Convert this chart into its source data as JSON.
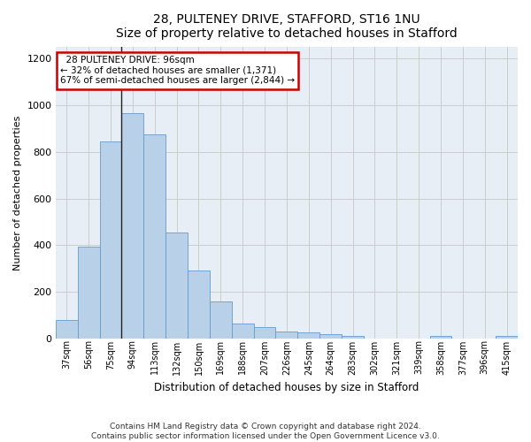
{
  "title1": "28, PULTENEY DRIVE, STAFFORD, ST16 1NU",
  "title2": "Size of property relative to detached houses in Stafford",
  "xlabel": "Distribution of detached houses by size in Stafford",
  "ylabel": "Number of detached properties",
  "footnote1": "Contains HM Land Registry data © Crown copyright and database right 2024.",
  "footnote2": "Contains public sector information licensed under the Open Government Licence v3.0.",
  "annotation_line1": "28 PULTENEY DRIVE: 96sqm",
  "annotation_line2": "← 32% of detached houses are smaller (1,371)",
  "annotation_line3": "67% of semi-detached houses are larger (2,844) →",
  "bar_color": "#b8d0e8",
  "bar_edge_color": "#6699cc",
  "grid_color": "#cccccc",
  "bg_color": "#e8eef5",
  "vline_color": "#222222",
  "annotation_box_edge": "#cc0000",
  "categories": [
    "37sqm",
    "56sqm",
    "75sqm",
    "94sqm",
    "113sqm",
    "132sqm",
    "150sqm",
    "169sqm",
    "188sqm",
    "207sqm",
    "226sqm",
    "245sqm",
    "264sqm",
    "283sqm",
    "302sqm",
    "321sqm",
    "339sqm",
    "358sqm",
    "377sqm",
    "396sqm",
    "415sqm"
  ],
  "values": [
    80,
    395,
    845,
    965,
    875,
    455,
    290,
    160,
    65,
    50,
    30,
    25,
    18,
    10,
    0,
    0,
    0,
    10,
    0,
    0,
    10
  ],
  "ylim": [
    0,
    1250
  ],
  "yticks": [
    0,
    200,
    400,
    600,
    800,
    1000,
    1200
  ],
  "vline_bar_index": 3,
  "figsize": [
    6.0,
    5.0
  ],
  "dpi": 100
}
